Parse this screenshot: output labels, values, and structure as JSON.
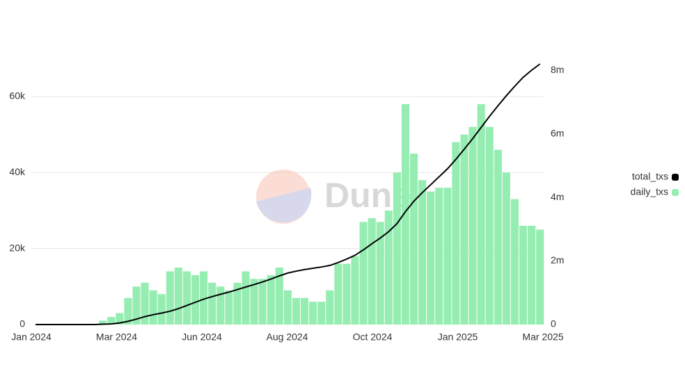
{
  "chart_data": {
    "type": "bar_line",
    "watermark": "Dune",
    "x": [
      3.5,
      10.5,
      17.5,
      24.5,
      31.5,
      38.5,
      45.5,
      52.5,
      59.5,
      66.5,
      73.5,
      80.5,
      87.5,
      94.5,
      101.5,
      108.5,
      115.5,
      122.5,
      129.5,
      136.5,
      143.5,
      150.5,
      157.5,
      164.5,
      171.5,
      178.5,
      185.5,
      192.5,
      199.5,
      206.5,
      213.5,
      220.5,
      227.5,
      234.5,
      241.5,
      248.5,
      255.5,
      262.5,
      269.5,
      276.5,
      283.5,
      290.5,
      297.5,
      304.5,
      311.5,
      318.5,
      325.5,
      332.5,
      339.5,
      346.5,
      353.5,
      360.5,
      367.5,
      374.5,
      381.5,
      388.5,
      395.5,
      402.5,
      409.5,
      416.5,
      423.5
    ],
    "xlim": [
      0,
      426
    ],
    "xticks": [
      {
        "value": 0,
        "label": "Jan 2024"
      },
      {
        "value": 71,
        "label": "Mar 2024"
      },
      {
        "value": 142,
        "label": "Jun 2024"
      },
      {
        "value": 213,
        "label": "Aug 2024"
      },
      {
        "value": 284,
        "label": "Oct 2024"
      },
      {
        "value": 355,
        "label": "Jan 2025"
      },
      {
        "value": 426,
        "label": "Mar 2025"
      }
    ],
    "ylim": [
      0,
      72600
    ],
    "yticks": [
      0,
      {
        "value": 20000,
        "label": "20k"
      },
      {
        "value": 40000,
        "label": "40k"
      },
      {
        "value": 60000,
        "label": "60k"
      }
    ],
    "y2lim": [
      0,
      8680000
    ],
    "y2ticks": [
      0,
      {
        "value": 2000000,
        "label": "2m"
      },
      {
        "value": 4000000,
        "label": "4m"
      },
      {
        "value": 6000000,
        "label": "6m"
      },
      {
        "value": 8000000,
        "label": "8m"
      }
    ],
    "grid": true,
    "legend": "right",
    "series": [
      {
        "name": "total_txs",
        "color": "#000000",
        "axis": "y2",
        "type": "line",
        "values": [
          0,
          0,
          0,
          0,
          0,
          0,
          0,
          0,
          10000,
          20000,
          50000,
          100000,
          170000,
          250000,
          310000,
          360000,
          420000,
          500000,
          600000,
          700000,
          800000,
          880000,
          950000,
          1020000,
          1100000,
          1180000,
          1260000,
          1340000,
          1430000,
          1530000,
          1620000,
          1680000,
          1730000,
          1770000,
          1810000,
          1860000,
          1950000,
          2060000,
          2180000,
          2350000,
          2540000,
          2720000,
          2920000,
          3180000,
          3550000,
          3880000,
          4150000,
          4400000,
          4650000,
          4900000,
          5200000,
          5520000,
          5850000,
          6200000,
          6550000,
          6880000,
          7200000,
          7500000,
          7780000,
          8000000,
          8200000
        ]
      },
      {
        "name": "daily_txs",
        "color": "#95edb2",
        "type": "bar",
        "values": [
          0,
          0,
          0,
          0,
          0,
          0,
          0,
          0,
          1000,
          2000,
          3000,
          7000,
          10000,
          11000,
          9000,
          8000,
          14000,
          15000,
          14000,
          13000,
          14000,
          11000,
          10000,
          9000,
          11000,
          14000,
          12000,
          12000,
          13000,
          15000,
          9000,
          7000,
          7000,
          6000,
          6000,
          9000,
          16000,
          16000,
          18000,
          27000,
          28000,
          27000,
          30000,
          40000,
          58000,
          45000,
          38000,
          35000,
          36000,
          36000,
          48000,
          50000,
          52000,
          58000,
          52000,
          46000,
          40000,
          33000,
          26000,
          26000,
          25000
        ]
      }
    ]
  }
}
